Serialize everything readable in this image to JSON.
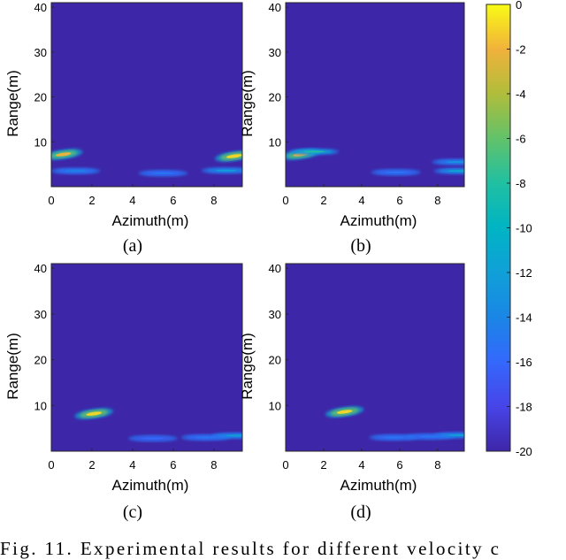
{
  "chart_data": [
    {
      "type": "heatmap",
      "panel_label": "(a)",
      "xlabel": "Azimuth(m)",
      "ylabel": "Range(m)",
      "xlim": [
        0,
        9.4
      ],
      "ylim": [
        0,
        41
      ],
      "xticks": [
        0,
        2,
        4,
        6,
        8
      ],
      "yticks": [
        10,
        20,
        30,
        40
      ],
      "background_value": -20,
      "hotspots": [
        {
          "x": 0.6,
          "y": 7.2,
          "value": -2
        },
        {
          "x": 9.0,
          "y": 6.8,
          "value": -1
        },
        {
          "x": 1.2,
          "y": 3.5,
          "value": -14
        },
        {
          "x": 5.5,
          "y": 3.0,
          "value": -15
        },
        {
          "x": 8.6,
          "y": 3.6,
          "value": -12
        }
      ]
    },
    {
      "type": "heatmap",
      "panel_label": "(b)",
      "xlabel": "Azimuth(m)",
      "ylabel": "Range(m)",
      "xlim": [
        0,
        9.4
      ],
      "ylim": [
        0,
        41
      ],
      "xticks": [
        0,
        2,
        4,
        6,
        8
      ],
      "yticks": [
        10,
        20,
        30,
        40
      ],
      "background_value": -20,
      "hotspots": [
        {
          "x": 0.8,
          "y": 7.2,
          "value": -2
        },
        {
          "x": 1.5,
          "y": 7.8,
          "value": -8
        },
        {
          "x": 5.8,
          "y": 3.2,
          "value": -15
        },
        {
          "x": 9.0,
          "y": 5.5,
          "value": -13
        },
        {
          "x": 9.1,
          "y": 3.5,
          "value": -11
        }
      ]
    },
    {
      "type": "heatmap",
      "panel_label": "(c)",
      "xlabel": "Azimuth(m)",
      "ylabel": "Range(m)",
      "xlim": [
        0,
        9.4
      ],
      "ylim": [
        0,
        41
      ],
      "xticks": [
        0,
        2,
        4,
        6,
        8
      ],
      "yticks": [
        10,
        20,
        30,
        40
      ],
      "background_value": -20,
      "hotspots": [
        {
          "x": 2.1,
          "y": 8.2,
          "value": -1
        },
        {
          "x": 5.0,
          "y": 2.8,
          "value": -16
        },
        {
          "x": 7.6,
          "y": 3.0,
          "value": -15
        },
        {
          "x": 9.1,
          "y": 3.4,
          "value": -12
        }
      ]
    },
    {
      "type": "heatmap",
      "panel_label": "(d)",
      "xlabel": "Azimuth(m)",
      "ylabel": "Range(m)",
      "xlim": [
        0,
        9.4
      ],
      "ylim": [
        0,
        41
      ],
      "xticks": [
        0,
        2,
        4,
        6,
        8
      ],
      "yticks": [
        10,
        20,
        30,
        40
      ],
      "background_value": -20,
      "hotspots": [
        {
          "x": 3.1,
          "y": 8.6,
          "value": -1
        },
        {
          "x": 5.7,
          "y": 3.0,
          "value": -15
        },
        {
          "x": 7.6,
          "y": 3.2,
          "value": -15
        },
        {
          "x": 9.1,
          "y": 3.5,
          "value": -12
        }
      ]
    }
  ],
  "colorbar": {
    "min": -20,
    "max": 0,
    "ticks": [
      0,
      -2,
      -4,
      -6,
      -8,
      -10,
      -12,
      -14,
      -16,
      -18,
      -20
    ],
    "colormap": "parula"
  },
  "caption": "Fig. 11. Experimental results for different velocity c"
}
